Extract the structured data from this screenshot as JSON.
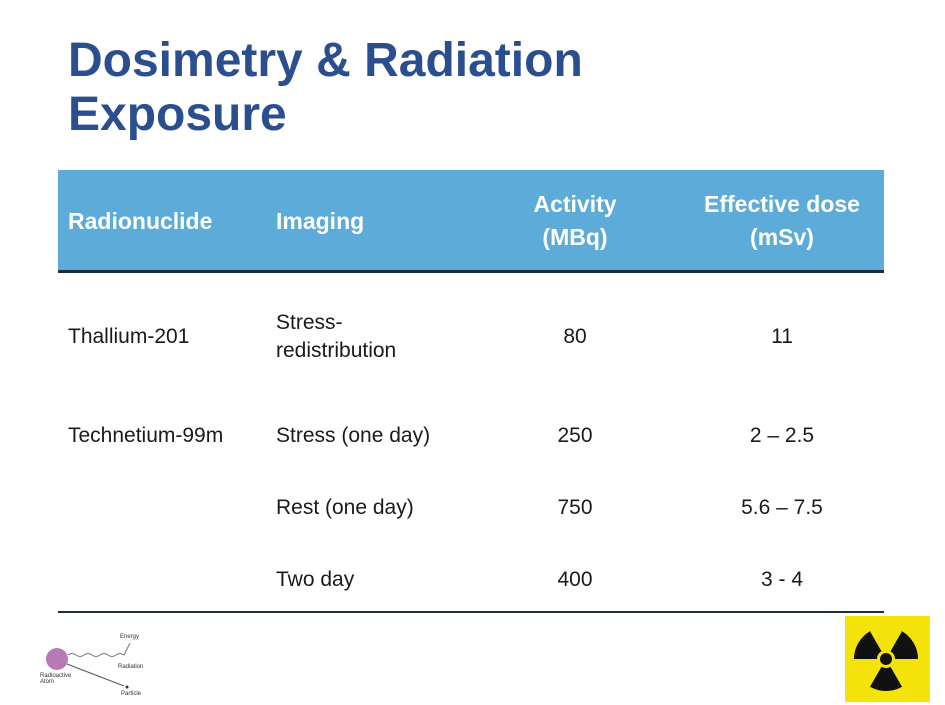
{
  "header": {
    "title": "Dosimetry & Radiation Exposure"
  },
  "table": {
    "columns": [
      [
        "Radionuclide"
      ],
      [
        "Imaging"
      ],
      [
        "Activity",
        "(MBq)"
      ],
      [
        "Effective dose",
        "(mSv)"
      ]
    ],
    "rows": [
      [
        "Thallium-201",
        [
          "Stress-",
          "redistribution"
        ],
        "80",
        "11"
      ],
      [
        "Technetium-99m",
        [
          "Stress (one day)"
        ],
        "250",
        "2 – 2.5"
      ],
      [
        null,
        [
          "Rest (one day)"
        ],
        "750",
        "5.6 – 7.5"
      ],
      [
        null,
        [
          "Two day"
        ],
        "400",
        "3 - 4"
      ]
    ]
  },
  "diagram": {
    "labels": [
      "Energy",
      "Radiation",
      "Particle",
      "Radioactive Atom"
    ]
  }
}
